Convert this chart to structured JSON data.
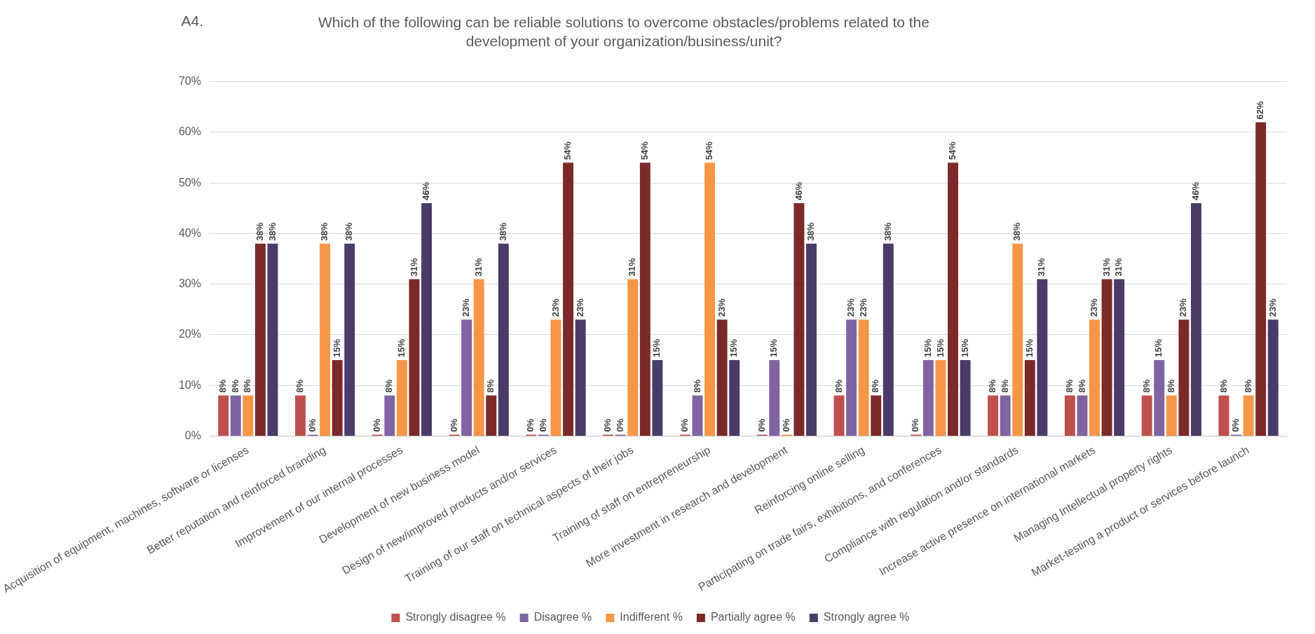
{
  "chart_data": {
    "type": "bar",
    "title": "A4.",
    "subtitle": "Which of the following can be reliable solutions to overcome obstacles/problems related to the development of your organization/business/unit?",
    "categories": [
      "Acquisition of equipment, machines, software or licenses",
      "Better reputation and reinforced branding",
      "Improvement of our internal processes",
      "Development of new business model",
      "Design of new/improved products and/or services",
      "Training of our staff on technical aspects of their jobs",
      "Training of staff on entrepreneurship",
      "More investment in research and development",
      "Reinforcing online selling",
      "Participating on trade fairs, exhibitions, and conferences",
      "Compliance with regulation and/or standards",
      "Increase active presence on international markets",
      "Managing Intellectual property rights",
      "Market-testing a product or services before launch"
    ],
    "series": [
      {
        "name": "Strongly disagree %",
        "color": "#c0504d",
        "values": [
          8,
          8,
          0,
          0,
          0,
          0,
          0,
          0,
          8,
          0,
          8,
          8,
          8,
          8
        ],
        "value_labels": [
          "8%",
          "8%",
          "0%",
          "0%",
          "0%",
          "0%",
          "0%",
          "0%",
          "8%",
          "0%",
          "8%",
          "8%",
          "8%",
          "8%"
        ]
      },
      {
        "name": "Disagree %",
        "color": "#8064a2",
        "values": [
          8,
          0,
          8,
          23,
          0,
          0,
          8,
          15,
          23,
          15,
          8,
          8,
          15,
          0
        ],
        "value_labels": [
          "8%",
          "0%",
          "8%",
          "23%",
          "0%",
          "0%",
          "8%",
          "15%",
          "23%",
          "15%",
          "8%",
          "8%",
          "15%",
          "0%"
        ]
      },
      {
        "name": "Indifferent %",
        "color": "#f79646",
        "values": [
          8,
          38,
          15,
          31,
          23,
          31,
          54,
          0,
          23,
          15,
          38,
          23,
          8,
          8
        ],
        "value_labels": [
          "8%",
          "38%",
          "15%",
          "31%",
          "23%",
          "31%",
          "54%",
          "0%",
          "23%",
          "15%",
          "38%",
          "23%",
          "8%",
          "8%"
        ]
      },
      {
        "name": "Partially agree %",
        "color": "#7b2a2a",
        "values": [
          38,
          15,
          31,
          8,
          54,
          54,
          23,
          46,
          8,
          54,
          15,
          31,
          23,
          62
        ],
        "value_labels": [
          "38%",
          "15%",
          "31%",
          "8%",
          "54%",
          "54%",
          "23%",
          "46%",
          "8%",
          "54%",
          "15%",
          "31%",
          "23%",
          "62%"
        ]
      },
      {
        "name": "Strongly agree %",
        "color": "#4b3b69",
        "values": [
          38,
          38,
          46,
          38,
          23,
          15,
          15,
          38,
          38,
          15,
          31,
          31,
          46,
          23
        ],
        "value_labels": [
          "38%",
          "38%",
          "46%",
          "38%",
          "23%",
          "15%",
          "15%",
          "38%",
          "38%",
          "15%",
          "31%",
          "31%",
          "46%",
          "23%"
        ]
      }
    ],
    "ylim": [
      0,
      70
    ],
    "yticks": [
      {
        "value": 0,
        "label": "0%"
      },
      {
        "value": 10,
        "label": "10%"
      },
      {
        "value": 20,
        "label": "20%"
      },
      {
        "value": 30,
        "label": "30%"
      },
      {
        "value": 40,
        "label": "40%"
      },
      {
        "value": 50,
        "label": "50%"
      },
      {
        "value": 60,
        "label": "60%"
      },
      {
        "value": 70,
        "label": "70%"
      }
    ],
    "grid": "y",
    "legend": "bottom"
  }
}
